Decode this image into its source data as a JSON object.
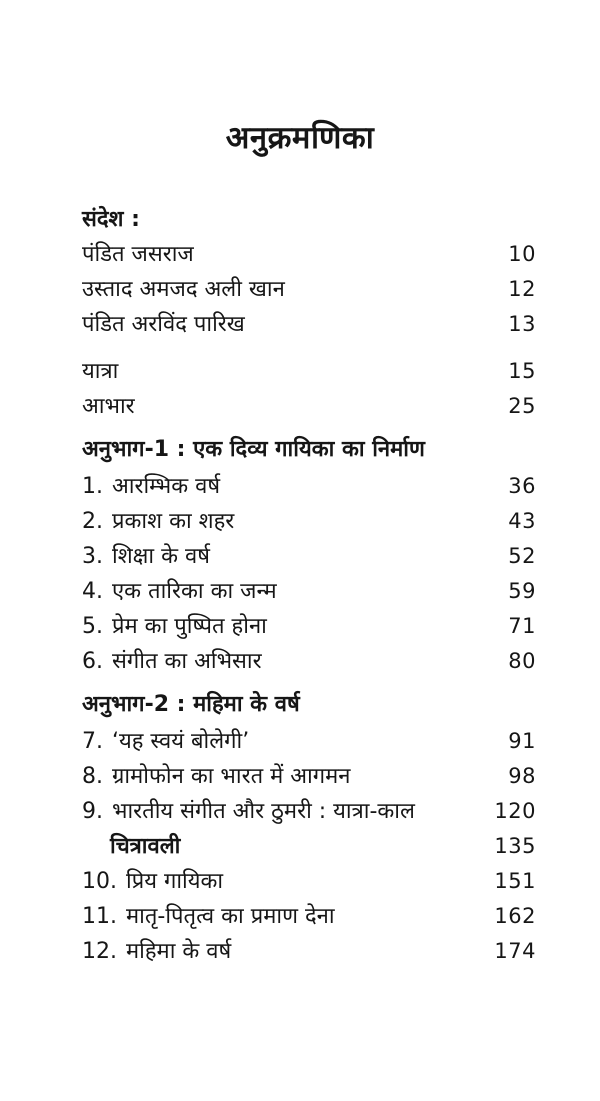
{
  "page": {
    "title": "अनुक्रमणिका",
    "background_color": "#ffffff",
    "text_color": "#161616"
  },
  "toc": {
    "sections": [
      {
        "heading": "संदेश :",
        "items": [
          {
            "label": "पंडित जसराज",
            "page": "10"
          },
          {
            "label": "उस्ताद अमजद अली खान",
            "page": "12"
          },
          {
            "label": "पंडित अरविंद पारिख",
            "page": "13"
          }
        ]
      },
      {
        "items": [
          {
            "label": "यात्रा",
            "page": "15"
          },
          {
            "label": "आभार",
            "page": "25"
          }
        ]
      },
      {
        "heading": "अनुभाग-1 : एक दिव्य गायिका का निर्माण",
        "items": [
          {
            "num": "1.",
            "label": "आरम्भिक वर्ष",
            "page": "36"
          },
          {
            "num": "2.",
            "label": "प्रकाश का शहर",
            "page": "43"
          },
          {
            "num": "3.",
            "label": "शिक्षा के वर्ष",
            "page": "52"
          },
          {
            "num": "4.",
            "label": "एक तारिका का जन्म",
            "page": "59"
          },
          {
            "num": "5.",
            "label": "प्रेम का पुष्पित होना",
            "page": "71"
          },
          {
            "num": "6.",
            "label": "संगीत का अभिसार",
            "page": "80"
          }
        ]
      },
      {
        "heading": "अनुभाग-2 : महिमा के वर्ष",
        "items": [
          {
            "num": "7.",
            "label": "‘यह स्वयं बोलेगी’",
            "page": "91"
          },
          {
            "num": "8.",
            "label": "ग्रामोफोन का भारत में आगमन",
            "page": "98"
          },
          {
            "num": "9.",
            "label": "भारतीय संगीत और ठुमरी : यात्रा-काल",
            "page": "120"
          },
          {
            "label": "चित्रावली",
            "page": "135",
            "style": "bold-indent"
          },
          {
            "num": "10.",
            "label": "प्रिय गायिका",
            "page": "151"
          },
          {
            "num": "11.",
            "label": "मातृ-पितृत्व का प्रमाण देना",
            "page": "162"
          },
          {
            "num": "12.",
            "label": "महिमा के वर्ष",
            "page": "174"
          }
        ]
      }
    ]
  }
}
